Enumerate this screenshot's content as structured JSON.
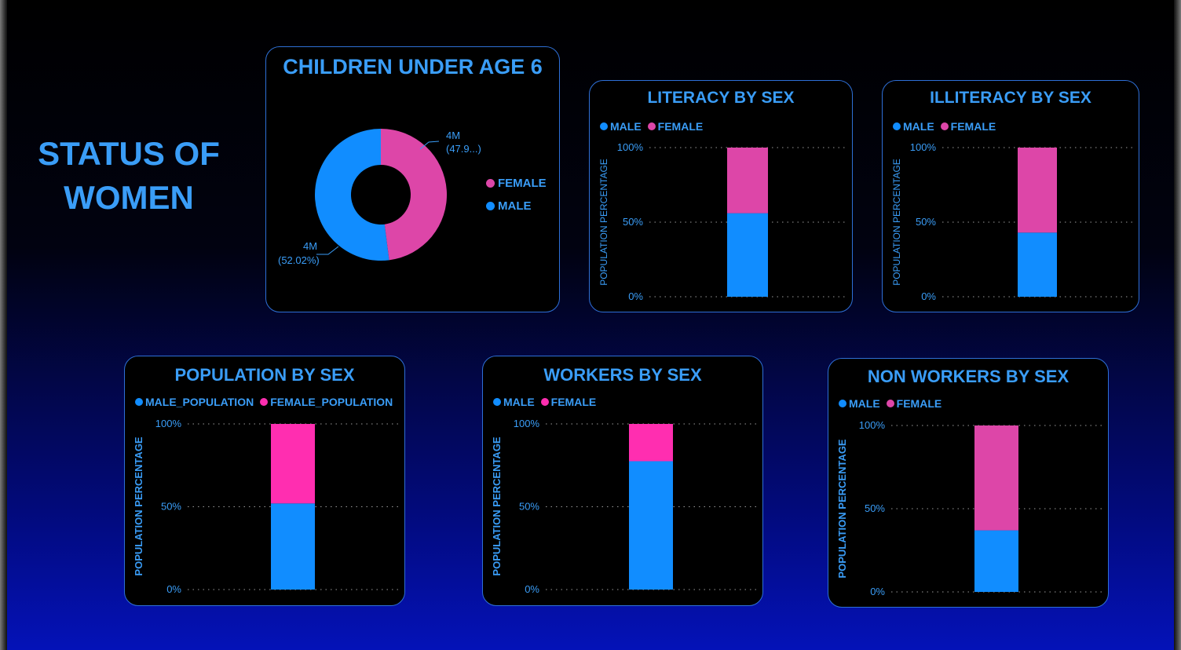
{
  "page_title_line1": "STATUS OF",
  "page_title_line2": "WOMEN",
  "colors": {
    "male": "#118dff",
    "female_mauve": "#dd46a8",
    "female_pink": "#ff2eb0",
    "title_blue": "#3a9df7",
    "border": "#2e6fd6"
  },
  "donut": {
    "title": "CHILDREN UNDER AGE 6",
    "legend": [
      "FEMALE",
      "MALE"
    ],
    "labels": {
      "female_value": "4M",
      "female_pct": "(47.9...)",
      "male_value": "4M",
      "male_pct": "(52.02%)"
    }
  },
  "chart_data": [
    {
      "id": "children",
      "type": "pie",
      "title": "CHILDREN UNDER AGE 6",
      "categories": [
        "FEMALE",
        "MALE"
      ],
      "values": [
        47.98,
        52.02
      ],
      "value_labels": [
        "4M",
        "4M"
      ]
    },
    {
      "id": "literacy",
      "type": "bar",
      "stacked": "100%",
      "title": "LITERACY BY SEX",
      "ylabel": "POPULATION PERCENTAGE",
      "yticks": [
        "0%",
        "50%",
        "100%"
      ],
      "ylim": [
        0,
        100
      ],
      "series": [
        {
          "name": "MALE",
          "values": [
            56
          ]
        },
        {
          "name": "FEMALE",
          "values": [
            44
          ]
        }
      ]
    },
    {
      "id": "illiteracy",
      "type": "bar",
      "stacked": "100%",
      "title": "ILLITERACY BY SEX",
      "ylabel": "POPULATION PERCENTAGE",
      "yticks": [
        "0%",
        "50%",
        "100%"
      ],
      "ylim": [
        0,
        100
      ],
      "series": [
        {
          "name": "MALE",
          "values": [
            43
          ]
        },
        {
          "name": "FEMALE",
          "values": [
            57
          ]
        }
      ]
    },
    {
      "id": "population",
      "type": "bar",
      "stacked": "100%",
      "title": "POPULATION BY SEX",
      "ylabel": "POPULATION PERCENTAGE",
      "yticks": [
        "0%",
        "50%",
        "100%"
      ],
      "ylim": [
        0,
        100
      ],
      "series": [
        {
          "name": "MALE_POPULATION",
          "values": [
            52
          ]
        },
        {
          "name": "FEMALE_POPULATION",
          "values": [
            48
          ]
        }
      ]
    },
    {
      "id": "workers",
      "type": "bar",
      "stacked": "100%",
      "title": "WORKERS BY SEX",
      "ylabel": "POPULATION PERCENTAGE",
      "yticks": [
        "0%",
        "50%",
        "100%"
      ],
      "ylim": [
        0,
        100
      ],
      "series": [
        {
          "name": "MALE",
          "values": [
            77.5
          ]
        },
        {
          "name": "FEMALE",
          "values": [
            22.5
          ]
        }
      ]
    },
    {
      "id": "nonworkers",
      "type": "bar",
      "stacked": "100%",
      "title": "NON WORKERS BY SEX",
      "ylabel": "POPULATION PERCENTAGE",
      "yticks": [
        "0%",
        "50%",
        "100%"
      ],
      "ylim": [
        0,
        100
      ],
      "series": [
        {
          "name": "MALE",
          "values": [
            37
          ]
        },
        {
          "name": "FEMALE",
          "values": [
            63
          ]
        }
      ]
    }
  ]
}
